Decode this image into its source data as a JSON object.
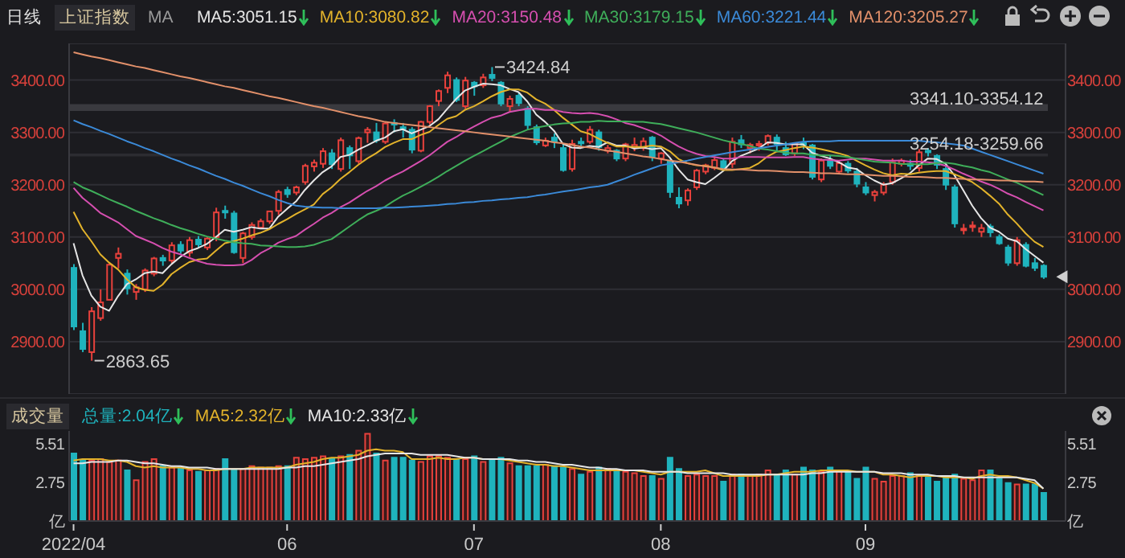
{
  "chart_data": [
    {
      "type": "candlestick",
      "title": "上证指数",
      "subtitle": "日线",
      "legend_title": "MA",
      "legend": "top",
      "grid": "y",
      "tick_labels": "y",
      "categories": [
        "2022/04",
        null,
        null,
        null,
        null,
        null,
        null,
        null,
        null,
        null,
        null,
        null,
        null,
        null,
        null,
        null,
        null,
        null,
        null,
        null,
        null,
        null,
        null,
        null,
        "06",
        null,
        null,
        null,
        null,
        null,
        null,
        null,
        null,
        null,
        null,
        null,
        null,
        null,
        null,
        null,
        null,
        null,
        null,
        null,
        null,
        "07",
        null,
        null,
        null,
        null,
        null,
        null,
        null,
        null,
        null,
        null,
        null,
        null,
        null,
        null,
        null,
        null,
        null,
        null,
        null,
        null,
        "08",
        null,
        null,
        null,
        null,
        null,
        null,
        null,
        null,
        null,
        null,
        null,
        null,
        null,
        null,
        null,
        null,
        null,
        null,
        null,
        null,
        null,
        null,
        "09",
        null,
        null,
        null,
        null,
        null,
        null,
        null,
        null,
        null,
        null,
        null,
        null,
        null,
        null,
        null,
        null,
        null,
        null,
        null,
        null
      ],
      "ohlc": [
        [
          3041,
          3048,
          2922,
          2929
        ],
        [
          2920,
          2936,
          2880,
          2886
        ],
        [
          2880,
          2966,
          2863.65,
          2958
        ],
        [
          2945,
          3000,
          2940,
          2975
        ],
        [
          2980,
          3050,
          2980,
          3047
        ],
        [
          3060,
          3080,
          3040,
          3068
        ],
        [
          3030,
          3038,
          2990,
          3002
        ],
        [
          2995,
          3010,
          2980,
          3004
        ],
        [
          3000,
          3040,
          2995,
          3036
        ],
        [
          3030,
          3062,
          3025,
          3059
        ],
        [
          3060,
          3066,
          3045,
          3055
        ],
        [
          3055,
          3090,
          3050,
          3084
        ],
        [
          3085,
          3092,
          3068,
          3074
        ],
        [
          3070,
          3100,
          3062,
          3094
        ],
        [
          3095,
          3102,
          3080,
          3086
        ],
        [
          3080,
          3100,
          3075,
          3097
        ],
        [
          3100,
          3156,
          3092,
          3147
        ],
        [
          3150,
          3160,
          3135,
          3147
        ],
        [
          3145,
          3150,
          3068,
          3071
        ],
        [
          3060,
          3110,
          3050,
          3107
        ],
        [
          3100,
          3128,
          3095,
          3123
        ],
        [
          3118,
          3135,
          3115,
          3130
        ],
        [
          3130,
          3150,
          3125,
          3149
        ],
        [
          3150,
          3190,
          3142,
          3186
        ],
        [
          3190,
          3196,
          3175,
          3182
        ],
        [
          3185,
          3198,
          3180,
          3195
        ],
        [
          3205,
          3240,
          3200,
          3236
        ],
        [
          3235,
          3248,
          3225,
          3242
        ],
        [
          3240,
          3270,
          3232,
          3264
        ],
        [
          3260,
          3268,
          3230,
          3239
        ],
        [
          3230,
          3290,
          3225,
          3285
        ],
        [
          3270,
          3275,
          3230,
          3256
        ],
        [
          3245,
          3292,
          3240,
          3289
        ],
        [
          3300,
          3310,
          3280,
          3305
        ],
        [
          3300,
          3318,
          3280,
          3285
        ],
        [
          3282,
          3320,
          3278,
          3317
        ],
        [
          3318,
          3325,
          3300,
          3315
        ],
        [
          3310,
          3318,
          3290,
          3307
        ],
        [
          3305,
          3310,
          3260,
          3267
        ],
        [
          3265,
          3322,
          3262,
          3320
        ],
        [
          3320,
          3352,
          3315,
          3350
        ],
        [
          3360,
          3382,
          3350,
          3379
        ],
        [
          3385,
          3416,
          3375,
          3409
        ],
        [
          3400,
          3405,
          3358,
          3362
        ],
        [
          3350,
          3406,
          3345,
          3399
        ],
        [
          3395,
          3398,
          3370,
          3388
        ],
        [
          3390,
          3412,
          3385,
          3405
        ],
        [
          3410,
          3424.84,
          3398,
          3404
        ],
        [
          3395,
          3398,
          3350,
          3355
        ],
        [
          3350,
          3370,
          3340,
          3364
        ],
        [
          3370,
          3375,
          3350,
          3356
        ],
        [
          3345,
          3350,
          3305,
          3314
        ],
        [
          3310,
          3315,
          3276,
          3281
        ],
        [
          3275,
          3290,
          3272,
          3284
        ],
        [
          3290,
          3298,
          3270,
          3282
        ],
        [
          3270,
          3278,
          3225,
          3228
        ],
        [
          3230,
          3286,
          3225,
          3278
        ],
        [
          3282,
          3290,
          3270,
          3279
        ],
        [
          3282,
          3312,
          3278,
          3305
        ],
        [
          3300,
          3305,
          3265,
          3272
        ],
        [
          3265,
          3276,
          3260,
          3270
        ],
        [
          3265,
          3268,
          3245,
          3250
        ],
        [
          3250,
          3280,
          3245,
          3277
        ],
        [
          3272,
          3290,
          3264,
          3276
        ],
        [
          3270,
          3290,
          3265,
          3283
        ],
        [
          3290,
          3293,
          3245,
          3253
        ],
        [
          3250,
          3262,
          3240,
          3260
        ],
        [
          3245,
          3248,
          3175,
          3186
        ],
        [
          3175,
          3195,
          3155,
          3164
        ],
        [
          3170,
          3193,
          3160,
          3189
        ],
        [
          3195,
          3230,
          3190,
          3227
        ],
        [
          3225,
          3240,
          3220,
          3237
        ],
        [
          3232,
          3254,
          3228,
          3247
        ],
        [
          3245,
          3250,
          3226,
          3230
        ],
        [
          3240,
          3290,
          3232,
          3282
        ],
        [
          3285,
          3295,
          3270,
          3277
        ],
        [
          3270,
          3280,
          3260,
          3276
        ],
        [
          3275,
          3284,
          3265,
          3278
        ],
        [
          3280,
          3296,
          3275,
          3293
        ],
        [
          3290,
          3296,
          3265,
          3278
        ],
        [
          3270,
          3282,
          3255,
          3258
        ],
        [
          3260,
          3280,
          3255,
          3278
        ],
        [
          3280,
          3290,
          3268,
          3276
        ],
        [
          3275,
          3278,
          3210,
          3215
        ],
        [
          3210,
          3250,
          3205,
          3246
        ],
        [
          3245,
          3255,
          3230,
          3236
        ],
        [
          3225,
          3245,
          3220,
          3241
        ],
        [
          3240,
          3245,
          3222,
          3227
        ],
        [
          3225,
          3232,
          3195,
          3202
        ],
        [
          3195,
          3205,
          3180,
          3185
        ],
        [
          3180,
          3190,
          3168,
          3186
        ],
        [
          3185,
          3205,
          3180,
          3200
        ],
        [
          3205,
          3250,
          3200,
          3243
        ],
        [
          3240,
          3250,
          3235,
          3246
        ],
        [
          3240,
          3248,
          3228,
          3236
        ],
        [
          3232,
          3268,
          3225,
          3262
        ],
        [
          3265,
          3270,
          3254,
          3264
        ],
        [
          3255,
          3258,
          3230,
          3238
        ],
        [
          3230,
          3235,
          3190,
          3200
        ],
        [
          3195,
          3200,
          3118,
          3126
        ],
        [
          3115,
          3125,
          3105,
          3116
        ],
        [
          3120,
          3130,
          3110,
          3122
        ],
        [
          3110,
          3125,
          3100,
          3117
        ],
        [
          3120,
          3125,
          3100,
          3109
        ],
        [
          3100,
          3105,
          3085,
          3088
        ],
        [
          3080,
          3085,
          3045,
          3051
        ],
        [
          3050,
          3100,
          3045,
          3094
        ],
        [
          3085,
          3090,
          3042,
          3045
        ],
        [
          3050,
          3060,
          3035,
          3041
        ],
        [
          3045,
          3048,
          3020,
          3024
        ]
      ],
      "colors": [
        "#1fb3bd",
        "#1fb3bd",
        "#e8413c",
        "#e8413c",
        "#e8413c",
        "#e8413c",
        "#1fb3bd",
        "#e8413c",
        "#e8413c",
        "#e8413c",
        "#1fb3bd",
        "#e8413c",
        "#1fb3bd",
        "#e8413c",
        "#1fb3bd",
        "#e8413c",
        "#e8413c",
        "#1fb3bd",
        "#1fb3bd",
        "#e8413c",
        "#e8413c",
        "#e8413c",
        "#e8413c",
        "#e8413c",
        "#1fb3bd",
        "#e8413c",
        "#e8413c",
        "#e8413c",
        "#e8413c",
        "#1fb3bd",
        "#e8413c",
        "#1fb3bd",
        "#e8413c",
        "#e8413c",
        "#1fb3bd",
        "#e8413c",
        "#1fb3bd",
        "#1fb3bd",
        "#1fb3bd",
        "#e8413c",
        "#e8413c",
        "#e8413c",
        "#e8413c",
        "#1fb3bd",
        "#e8413c",
        "#1fb3bd",
        "#e8413c",
        "#1fb3bd",
        "#1fb3bd",
        "#e8413c",
        "#1fb3bd",
        "#1fb3bd",
        "#1fb3bd",
        "#e8413c",
        "#1fb3bd",
        "#1fb3bd",
        "#e8413c",
        "#1fb3bd",
        "#e8413c",
        "#1fb3bd",
        "#e8413c",
        "#1fb3bd",
        "#e8413c",
        "#e8413c",
        "#e8413c",
        "#1fb3bd",
        "#e8413c",
        "#1fb3bd",
        "#1fb3bd",
        "#e8413c",
        "#e8413c",
        "#e8413c",
        "#e8413c",
        "#1fb3bd",
        "#e8413c",
        "#1fb3bd",
        "#e8413c",
        "#e8413c",
        "#e8413c",
        "#1fb3bd",
        "#1fb3bd",
        "#e8413c",
        "#1fb3bd",
        "#1fb3bd",
        "#e8413c",
        "#1fb3bd",
        "#e8413c",
        "#1fb3bd",
        "#1fb3bd",
        "#1fb3bd",
        "#e8413c",
        "#e8413c",
        "#e8413c",
        "#e8413c",
        "#1fb3bd",
        "#e8413c",
        "#1fb3bd",
        "#1fb3bd",
        "#1fb3bd",
        "#1fb3bd",
        "#e8413c",
        "#e8413c",
        "#e8413c",
        "#1fb3bd",
        "#1fb3bd",
        "#1fb3bd",
        "#e8413c",
        "#1fb3bd",
        "#1fb3bd",
        "#1fb3bd"
      ],
      "series": [
        {
          "name": "MA5:3051.15",
          "type": "line",
          "color": "#e6e6e6",
          "values": [
            3088,
            3027,
            2988,
            2967,
            2959,
            2987,
            3010,
            3019,
            3031,
            3034,
            3031,
            3048,
            3062,
            3073,
            3079,
            3087,
            3100,
            3114,
            3110,
            3114,
            3119,
            3116,
            3116,
            3139,
            3154,
            3168,
            3190,
            3208,
            3224,
            3235,
            3253,
            3257,
            3267,
            3275,
            3284,
            3290,
            3302,
            3306,
            3298,
            3305,
            3312,
            3325,
            3345,
            3364,
            3380,
            3387,
            3393,
            3392,
            3390,
            3383,
            3377,
            3359,
            3334,
            3320,
            3303,
            3278,
            3271,
            3270,
            3274,
            3272,
            3281,
            3275,
            3275,
            3269,
            3271,
            3268,
            3270,
            3252,
            3229,
            3210,
            3205,
            3201,
            3213,
            3226,
            3245,
            3255,
            3262,
            3269,
            3281,
            3280,
            3277,
            3277,
            3277,
            3261,
            3255,
            3250,
            3243,
            3233,
            3230,
            3218,
            3208,
            3200,
            3203,
            3212,
            3222,
            3237,
            3250,
            3249,
            3240,
            3218,
            3189,
            3160,
            3136,
            3118,
            3110,
            3097,
            3092,
            3077,
            3064,
            3051
          ]
        },
        {
          "name": "MA10:3080.82",
          "type": "line",
          "color": "#e3b32b",
          "values": [
            3148,
            3115,
            3092,
            3067,
            3051,
            3038,
            3019,
            3004,
            2999,
            2997,
            3009,
            3029,
            3041,
            3052,
            3057,
            3059,
            3074,
            3088,
            3092,
            3097,
            3103,
            3108,
            3115,
            3125,
            3134,
            3144,
            3153,
            3162,
            3182,
            3195,
            3211,
            3224,
            3238,
            3250,
            3260,
            3272,
            3280,
            3287,
            3287,
            3295,
            3301,
            3314,
            3326,
            3331,
            3343,
            3350,
            3359,
            3369,
            3377,
            3382,
            3382,
            3376,
            3363,
            3355,
            3343,
            3328,
            3315,
            3302,
            3297,
            3288,
            3280,
            3273,
            3273,
            3272,
            3272,
            3275,
            3273,
            3264,
            3249,
            3241,
            3237,
            3236,
            3233,
            3228,
            3228,
            3230,
            3232,
            3241,
            3254,
            3263,
            3266,
            3270,
            3273,
            3271,
            3268,
            3264,
            3260,
            3255,
            3246,
            3237,
            3229,
            3222,
            3218,
            3221,
            3220,
            3223,
            3225,
            3226,
            3226,
            3220,
            3213,
            3205,
            3193,
            3179,
            3164,
            3143,
            3126,
            3107,
            3091,
            3081
          ]
        },
        {
          "name": "MA20:3150.48",
          "type": "line",
          "color": "#d64fb0",
          "values": [
            3194,
            3175,
            3161,
            3146,
            3137,
            3128,
            3115,
            3102,
            3095,
            3088,
            3079,
            3072,
            3067,
            3060,
            3054,
            3049,
            3047,
            3046,
            3046,
            3047,
            3056,
            3069,
            3078,
            3089,
            3096,
            3102,
            3114,
            3125,
            3137,
            3146,
            3157,
            3166,
            3177,
            3188,
            3197,
            3208,
            3217,
            3225,
            3235,
            3245,
            3256,
            3269,
            3282,
            3291,
            3302,
            3311,
            3320,
            3328,
            3332,
            3339,
            3342,
            3345,
            3345,
            3343,
            3343,
            3339,
            3337,
            3336,
            3337,
            3335,
            3331,
            3325,
            3318,
            3314,
            3308,
            3302,
            3294,
            3283,
            3273,
            3265,
            3259,
            3255,
            3253,
            3250,
            3250,
            3253,
            3253,
            3253,
            3252,
            3252,
            3252,
            3253,
            3253,
            3250,
            3248,
            3247,
            3246,
            3248,
            3250,
            3250,
            3248,
            3246,
            3246,
            3246,
            3244,
            3244,
            3243,
            3241,
            3236,
            3229,
            3221,
            3214,
            3206,
            3200,
            3192,
            3183,
            3176,
            3167,
            3159,
            3151
          ]
        },
        {
          "name": "MA30:3179.15",
          "type": "line",
          "color": "#3fae5a",
          "values": [
            3205,
            3195,
            3188,
            3180,
            3172,
            3165,
            3158,
            3150,
            3143,
            3136,
            3130,
            3123,
            3117,
            3112,
            3106,
            3101,
            3097,
            3093,
            3090,
            3088,
            3087,
            3084,
            3083,
            3082,
            3081,
            3081,
            3082,
            3085,
            3091,
            3096,
            3108,
            3120,
            3132,
            3143,
            3150,
            3158,
            3169,
            3179,
            3187,
            3196,
            3205,
            3215,
            3226,
            3236,
            3246,
            3255,
            3264,
            3273,
            3282,
            3291,
            3298,
            3305,
            3309,
            3312,
            3315,
            3317,
            3318,
            3320,
            3320,
            3322,
            3321,
            3321,
            3321,
            3320,
            3320,
            3318,
            3316,
            3312,
            3308,
            3304,
            3300,
            3295,
            3290,
            3285,
            3281,
            3278,
            3274,
            3269,
            3267,
            3264,
            3261,
            3260,
            3260,
            3257,
            3256,
            3256,
            3255,
            3253,
            3250,
            3247,
            3244,
            3243,
            3242,
            3240,
            3239,
            3239,
            3239,
            3241,
            3242,
            3240,
            3236,
            3233,
            3228,
            3224,
            3217,
            3210,
            3204,
            3196,
            3188,
            3180
          ]
        },
        {
          "name": "MA60:3221.44",
          "type": "line",
          "color": "#3b8ad8",
          "values": [
            3323,
            3316,
            3310,
            3303,
            3297,
            3290,
            3283,
            3277,
            3270,
            3264,
            3257,
            3250,
            3244,
            3237,
            3231,
            3224,
            3217,
            3211,
            3204,
            3198,
            3191,
            3184,
            3178,
            3171,
            3165,
            3160,
            3158,
            3157,
            3156,
            3156,
            3155,
            3155,
            3155,
            3155,
            3155,
            3156,
            3156,
            3157,
            3158,
            3159,
            3160,
            3161,
            3163,
            3164,
            3166,
            3167,
            3169,
            3170,
            3172,
            3173,
            3175,
            3176,
            3179,
            3181,
            3184,
            3187,
            3189,
            3192,
            3195,
            3197,
            3200,
            3206,
            3212,
            3219,
            3225,
            3231,
            3237,
            3240,
            3243,
            3246,
            3250,
            3253,
            3256,
            3259,
            3262,
            3265,
            3267,
            3270,
            3272,
            3275,
            3277,
            3280,
            3282,
            3283,
            3283,
            3283,
            3284,
            3284,
            3284,
            3284,
            3284,
            3284,
            3284,
            3284,
            3284,
            3284,
            3282,
            3281,
            3279,
            3277,
            3275,
            3269,
            3263,
            3257,
            3251,
            3245,
            3239,
            3233,
            3227,
            3221
          ]
        },
        {
          "name": "MA120:3205.27",
          "type": "line",
          "color": "#e2906a",
          "values": [
            3453,
            3449,
            3445,
            3442,
            3438,
            3434,
            3430,
            3426,
            3423,
            3419,
            3415,
            3411,
            3407,
            3404,
            3400,
            3396,
            3392,
            3388,
            3385,
            3381,
            3377,
            3373,
            3369,
            3366,
            3362,
            3358,
            3354,
            3350,
            3347,
            3343,
            3339,
            3335,
            3331,
            3328,
            3324,
            3320,
            3318,
            3316,
            3314,
            3312,
            3310,
            3308,
            3306,
            3304,
            3302,
            3300,
            3298,
            3296,
            3294,
            3292,
            3290,
            3288,
            3286,
            3284,
            3281,
            3279,
            3276,
            3273,
            3271,
            3268,
            3265,
            3263,
            3260,
            3257,
            3254,
            3252,
            3249,
            3246,
            3244,
            3241,
            3238,
            3235,
            3233,
            3230,
            3229,
            3229,
            3228,
            3227,
            3227,
            3226,
            3225,
            3224,
            3224,
            3223,
            3222,
            3222,
            3221,
            3220,
            3220,
            3219,
            3218,
            3217,
            3217,
            3216,
            3215,
            3215,
            3214,
            3213,
            3213,
            3212,
            3211,
            3210,
            3210,
            3209,
            3208,
            3208,
            3207,
            3206,
            3206,
            3205
          ]
        }
      ],
      "ylim": [
        2800,
        3470
      ],
      "yticks": [
        {
          "value": 2900,
          "label": "2900.00"
        },
        {
          "value": 3000,
          "label": "3000.00"
        },
        {
          "value": 3100,
          "label": "3100.00"
        },
        {
          "value": 3200,
          "label": "3200.00"
        },
        {
          "value": 3300,
          "label": "3300.00"
        },
        {
          "value": 3400,
          "label": "3400.00"
        }
      ],
      "y2lim": [
        2800,
        3470
      ],
      "y2ticks": [
        {
          "value": 2900,
          "label": "2900.00"
        },
        {
          "value": 3000,
          "label": "3000.00"
        },
        {
          "value": 3100,
          "label": "3100.00"
        },
        {
          "value": 3200,
          "label": "3200.00"
        },
        {
          "value": 3300,
          "label": "3300.00"
        },
        {
          "value": 3400,
          "label": "3400.00"
        }
      ],
      "bands": [
        {
          "axis": "y",
          "from": 3341.1,
          "to": 3354.12,
          "label": "3341.10-3354.12",
          "color": "#3a3a3f"
        },
        {
          "axis": "y",
          "from": 3254.18,
          "to": 3259.66,
          "label": "3254.18-3259.66",
          "color": "#2c2c31"
        }
      ],
      "annotations": [
        "2863.65",
        "3424.84"
      ]
    },
    {
      "type": "bar",
      "title": "成交量",
      "legend": "top left",
      "categories": [
        "2022/04",
        null,
        null,
        null,
        null,
        null,
        null,
        null,
        null,
        null,
        null,
        null,
        null,
        null,
        null,
        null,
        null,
        null,
        null,
        null,
        null,
        null,
        null,
        null,
        "06",
        null,
        null,
        null,
        null,
        null,
        null,
        null,
        null,
        null,
        null,
        null,
        null,
        null,
        null,
        null,
        null,
        null,
        null,
        null,
        null,
        "07",
        null,
        null,
        null,
        null,
        null,
        null,
        null,
        null,
        null,
        null,
        null,
        null,
        null,
        null,
        null,
        null,
        null,
        null,
        null,
        null,
        "08",
        null,
        null,
        null,
        null,
        null,
        null,
        null,
        null,
        null,
        null,
        null,
        null,
        null,
        null,
        null,
        null,
        null,
        null,
        null,
        null,
        null,
        null,
        "09",
        null,
        null,
        null,
        null,
        null,
        null,
        null,
        null,
        null,
        null,
        null,
        null,
        null,
        null,
        null,
        null,
        null,
        null,
        null,
        null
      ],
      "series": [
        {
          "name": "总量:2.04亿",
          "type": "bar",
          "color": "#1fb3bd",
          "values": [
            4.8,
            4.3,
            4.3,
            4.4,
            4.2,
            4.3,
            3.6,
            2.9,
            4.2,
            4.4,
            3.9,
            3.8,
            3.8,
            3.6,
            3.5,
            3.6,
            3.7,
            4.4,
            3.6,
            3.7,
            3.9,
            3.8,
            3.8,
            3.9,
            3.9,
            4.5,
            4.4,
            4.5,
            4.6,
            4.4,
            4.6,
            4.7,
            5.0,
            6.2,
            4.8,
            4.3,
            4.5,
            4.5,
            4.3,
            4.2,
            4.6,
            4.6,
            4.5,
            4.4,
            4.4,
            4.6,
            4.2,
            4.3,
            4.5,
            4.1,
            3.9,
            3.9,
            3.9,
            4.0,
            3.9,
            3.8,
            3.7,
            3.3,
            3.5,
            3.8,
            3.7,
            3.5,
            3.5,
            3.4,
            3.2,
            3.2,
            3.0,
            4.5,
            3.7,
            3.2,
            3.3,
            3.2,
            3.2,
            2.8,
            3.3,
            3.3,
            3.2,
            3.3,
            3.6,
            3.3,
            3.6,
            3.3,
            3.8,
            3.6,
            3.5,
            3.8,
            3.6,
            3.5,
            3.0,
            3.8,
            3.0,
            2.8,
            3.2,
            3.2,
            3.4,
            3.2,
            3.2,
            2.8,
            3.1,
            3.3,
            3.0,
            2.9,
            3.6,
            3.6,
            3.0,
            2.7,
            2.6,
            2.6,
            2.6,
            2.0
          ],
          "colors": [
            "#1fb3bd",
            "#1fb3bd",
            "#e8413c",
            "#e8413c",
            "#e8413c",
            "#e8413c",
            "#1fb3bd",
            "#e8413c",
            "#e8413c",
            "#e8413c",
            "#1fb3bd",
            "#e8413c",
            "#1fb3bd",
            "#e8413c",
            "#1fb3bd",
            "#e8413c",
            "#e8413c",
            "#1fb3bd",
            "#1fb3bd",
            "#e8413c",
            "#e8413c",
            "#e8413c",
            "#e8413c",
            "#e8413c",
            "#1fb3bd",
            "#e8413c",
            "#e8413c",
            "#e8413c",
            "#e8413c",
            "#1fb3bd",
            "#e8413c",
            "#1fb3bd",
            "#e8413c",
            "#e8413c",
            "#1fb3bd",
            "#e8413c",
            "#1fb3bd",
            "#1fb3bd",
            "#1fb3bd",
            "#e8413c",
            "#e8413c",
            "#e8413c",
            "#e8413c",
            "#1fb3bd",
            "#e8413c",
            "#1fb3bd",
            "#e8413c",
            "#1fb3bd",
            "#1fb3bd",
            "#e8413c",
            "#1fb3bd",
            "#1fb3bd",
            "#1fb3bd",
            "#e8413c",
            "#1fb3bd",
            "#1fb3bd",
            "#e8413c",
            "#1fb3bd",
            "#e8413c",
            "#1fb3bd",
            "#e8413c",
            "#1fb3bd",
            "#e8413c",
            "#e8413c",
            "#e8413c",
            "#1fb3bd",
            "#e8413c",
            "#1fb3bd",
            "#1fb3bd",
            "#e8413c",
            "#e8413c",
            "#e8413c",
            "#e8413c",
            "#1fb3bd",
            "#e8413c",
            "#1fb3bd",
            "#e8413c",
            "#e8413c",
            "#e8413c",
            "#1fb3bd",
            "#1fb3bd",
            "#e8413c",
            "#1fb3bd",
            "#1fb3bd",
            "#e8413c",
            "#1fb3bd",
            "#e8413c",
            "#1fb3bd",
            "#1fb3bd",
            "#1fb3bd",
            "#e8413c",
            "#e8413c",
            "#e8413c",
            "#e8413c",
            "#1fb3bd",
            "#e8413c",
            "#1fb3bd",
            "#1fb3bd",
            "#1fb3bd",
            "#1fb3bd",
            "#e8413c",
            "#e8413c",
            "#e8413c",
            "#1fb3bd",
            "#1fb3bd",
            "#1fb3bd",
            "#e8413c",
            "#1fb3bd",
            "#1fb3bd",
            "#1fb3bd"
          ]
        },
        {
          "name": "MA5:2.32亿",
          "type": "line",
          "color": "#e3b32b",
          "values": [
            4.3,
            4.4,
            4.4,
            4.4,
            4.3,
            4.3,
            4.2,
            3.9,
            3.8,
            3.9,
            3.8,
            3.8,
            3.8,
            3.7,
            3.7,
            3.6,
            3.6,
            3.7,
            3.7,
            3.7,
            3.8,
            3.8,
            3.8,
            3.8,
            3.8,
            4.0,
            4.1,
            4.2,
            4.4,
            4.5,
            4.5,
            4.6,
            4.7,
            5.0,
            5.1,
            5.0,
            5.0,
            4.9,
            4.4,
            4.4,
            4.4,
            4.5,
            4.4,
            4.4,
            4.5,
            4.5,
            4.4,
            4.4,
            4.4,
            4.3,
            4.2,
            4.1,
            4.0,
            4.0,
            3.9,
            3.9,
            3.8,
            3.7,
            3.6,
            3.6,
            3.6,
            3.6,
            3.6,
            3.6,
            3.5,
            3.4,
            3.3,
            3.5,
            3.5,
            3.5,
            3.5,
            3.6,
            3.4,
            3.2,
            3.2,
            3.2,
            3.2,
            3.2,
            3.3,
            3.3,
            3.4,
            3.5,
            3.5,
            3.5,
            3.6,
            3.6,
            3.6,
            3.6,
            3.5,
            3.5,
            3.5,
            3.3,
            3.3,
            3.2,
            3.1,
            3.2,
            3.2,
            3.2,
            3.1,
            3.1,
            3.1,
            3.0,
            3.2,
            3.3,
            3.2,
            3.2,
            3.1,
            2.9,
            2.7,
            2.3
          ]
        },
        {
          "name": "MA10:2.33亿",
          "type": "line",
          "color": "#e6e6e6",
          "values": [
            4.1,
            4.1,
            4.2,
            4.2,
            4.2,
            4.3,
            4.3,
            4.2,
            4.1,
            4.1,
            4.0,
            3.9,
            3.9,
            3.8,
            3.8,
            3.8,
            3.7,
            3.7,
            3.7,
            3.7,
            3.7,
            3.7,
            3.7,
            3.7,
            3.8,
            3.8,
            3.9,
            3.9,
            4.0,
            4.1,
            4.2,
            4.3,
            4.4,
            4.6,
            4.7,
            4.8,
            4.8,
            4.8,
            4.8,
            4.7,
            4.7,
            4.7,
            4.7,
            4.6,
            4.5,
            4.5,
            4.4,
            4.4,
            4.4,
            4.4,
            4.3,
            4.3,
            4.2,
            4.2,
            4.1,
            4.0,
            4.0,
            3.9,
            3.8,
            3.8,
            3.7,
            3.7,
            3.6,
            3.6,
            3.6,
            3.5,
            3.5,
            3.5,
            3.5,
            3.4,
            3.4,
            3.4,
            3.4,
            3.4,
            3.3,
            3.3,
            3.3,
            3.3,
            3.3,
            3.3,
            3.3,
            3.3,
            3.3,
            3.4,
            3.4,
            3.5,
            3.5,
            3.5,
            3.5,
            3.5,
            3.5,
            3.4,
            3.4,
            3.4,
            3.3,
            3.3,
            3.3,
            3.2,
            3.2,
            3.2,
            3.1,
            3.1,
            3.1,
            3.1,
            3.1,
            3.1,
            3.1,
            3.0,
            2.9,
            2.3
          ]
        }
      ],
      "ylim": [
        0,
        6.4
      ],
      "yticks": [
        {
          "value": 0,
          "label": "亿"
        },
        2.75,
        5.51
      ],
      "y2lim": [
        0,
        6.4
      ],
      "y2ticks": [
        {
          "value": 0,
          "label": "亿"
        },
        2.75,
        5.51
      ]
    }
  ]
}
